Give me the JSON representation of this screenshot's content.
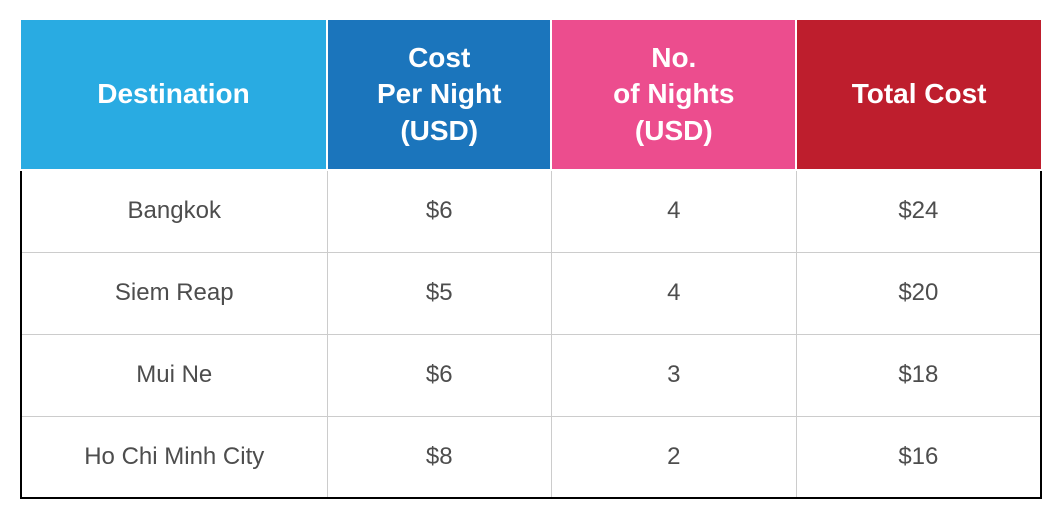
{
  "table": {
    "type": "table",
    "columns": [
      {
        "label": "Destination",
        "bg_color": "#29abe2",
        "text_color": "#ffffff",
        "width": "30%"
      },
      {
        "label": "Cost\nPer Night\n(USD)",
        "bg_color": "#1b75bc",
        "text_color": "#ffffff",
        "width": "22%"
      },
      {
        "label": "No.\nof Nights\n(USD)",
        "bg_color": "#ec4d8e",
        "text_color": "#ffffff",
        "width": "24%"
      },
      {
        "label": "Total Cost",
        "bg_color": "#be1e2d",
        "text_color": "#ffffff",
        "width": "24%"
      }
    ],
    "rows": [
      {
        "destination": "Bangkok",
        "cost_per_night": "$6",
        "nights": "4",
        "total": "$24"
      },
      {
        "destination": "Siem Reap",
        "cost_per_night": "$5",
        "nights": "4",
        "total": "$20"
      },
      {
        "destination": "Mui Ne",
        "cost_per_night": "$6",
        "nights": "3",
        "total": "$18"
      },
      {
        "destination": "Ho Chi Minh City",
        "cost_per_night": "$8",
        "nights": "2",
        "total": "$16"
      }
    ],
    "header_fontsize": 28,
    "body_fontsize": 24,
    "body_text_color": "#4d4d4d",
    "border_color_outer": "#000000",
    "border_color_inner": "#cccccc",
    "header_row_height": 140
  }
}
